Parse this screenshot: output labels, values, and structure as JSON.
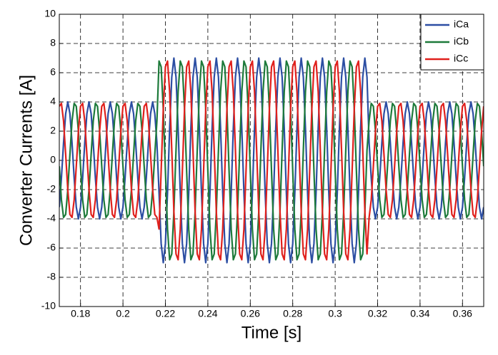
{
  "chart_data": {
    "type": "line",
    "xlabel": "Time [s]",
    "ylabel": "Converter Currents [A]",
    "xlim": [
      0.17,
      0.37
    ],
    "ylim": [
      -10,
      10
    ],
    "xticks": [
      0.18,
      0.2,
      0.22,
      0.24,
      0.26,
      0.28,
      0.3,
      0.32,
      0.34,
      0.36
    ],
    "yticks": [
      -10,
      -8,
      -6,
      -4,
      -2,
      0,
      2,
      4,
      6,
      8,
      10
    ],
    "grid": true,
    "legend": "upper right",
    "x": [
      0.17,
      0.171,
      0.172,
      0.173,
      0.174,
      0.175,
      0.176,
      0.177,
      0.178,
      0.179,
      0.18,
      0.181,
      0.182,
      0.183,
      0.184,
      0.185,
      0.186,
      0.187,
      0.188,
      0.189,
      0.19,
      0.191,
      0.192,
      0.193,
      0.194,
      0.195,
      0.196,
      0.197,
      0.198,
      0.199,
      0.2,
      0.201,
      0.202,
      0.203,
      0.204,
      0.205,
      0.206,
      0.207,
      0.208,
      0.209,
      0.21,
      0.211,
      0.212,
      0.213,
      0.214,
      0.215,
      0.216,
      0.217,
      0.218,
      0.219,
      0.22,
      0.221,
      0.222,
      0.223,
      0.224,
      0.225,
      0.226,
      0.227,
      0.228,
      0.229,
      0.23,
      0.231,
      0.232,
      0.233,
      0.234,
      0.235,
      0.236,
      0.237,
      0.238,
      0.239,
      0.24,
      0.241,
      0.242,
      0.243,
      0.244,
      0.245,
      0.246,
      0.247,
      0.248,
      0.249,
      0.25,
      0.251,
      0.252,
      0.253,
      0.254,
      0.255,
      0.256,
      0.257,
      0.258,
      0.259,
      0.26,
      0.261,
      0.262,
      0.263,
      0.264,
      0.265,
      0.266,
      0.267,
      0.268,
      0.269,
      0.27,
      0.271,
      0.272,
      0.273,
      0.274,
      0.275,
      0.276,
      0.277,
      0.278,
      0.279,
      0.28,
      0.281,
      0.282,
      0.283,
      0.284,
      0.285,
      0.286,
      0.287,
      0.288,
      0.289,
      0.29,
      0.291,
      0.292,
      0.293,
      0.294,
      0.295,
      0.296,
      0.297,
      0.298,
      0.299,
      0.3,
      0.301,
      0.302,
      0.303,
      0.304,
      0.305,
      0.306,
      0.307,
      0.308,
      0.309,
      0.31,
      0.311,
      0.312,
      0.313,
      0.314,
      0.315,
      0.316,
      0.317,
      0.318,
      0.319,
      0.32,
      0.321,
      0.322,
      0.323,
      0.324,
      0.325,
      0.326,
      0.327,
      0.328,
      0.329,
      0.33,
      0.331,
      0.332,
      0.333,
      0.334,
      0.335,
      0.336,
      0.337,
      0.338,
      0.339,
      0.34,
      0.341,
      0.342,
      0.343,
      0.344,
      0.345,
      0.346,
      0.347,
      0.348,
      0.349,
      0.35,
      0.351,
      0.352,
      0.353,
      0.354,
      0.355,
      0.356,
      0.357,
      0.358,
      0.359,
      0.36,
      0.361,
      0.362,
      0.363,
      0.364,
      0.365,
      0.366,
      0.367,
      0.368,
      0.369,
      0.37
    ],
    "series": [
      {
        "name": "iCa",
        "color": "#2c4ea3",
        "values": [
          -3.2,
          -1.2,
          1.2,
          3.2,
          4,
          3.2,
          1.2,
          -1.2,
          -3.2,
          -4,
          -3.2,
          -1.2,
          1.2,
          3.2,
          4,
          3.2,
          1.2,
          -1.2,
          -3.2,
          -4,
          -3.2,
          -1.2,
          1.2,
          3.2,
          4,
          3.2,
          1.2,
          -1.2,
          -3.2,
          -4,
          -3.2,
          -1.2,
          1.2,
          3.2,
          4,
          3.2,
          1.2,
          -1.2,
          -3.2,
          -4,
          -3.2,
          -1.2,
          1.2,
          3.2,
          4,
          3.2,
          1.2,
          -2.2,
          -5.7,
          -7,
          -5.7,
          -2.2,
          2.2,
          5.7,
          7,
          5.7,
          2.2,
          -2.2,
          -5.7,
          -7,
          -5.7,
          -2.2,
          2.2,
          5.7,
          7,
          5.7,
          2.2,
          -2.2,
          -5.7,
          -7,
          -5.7,
          -2.2,
          2.2,
          5.7,
          7,
          5.7,
          2.2,
          -2.2,
          -5.7,
          -7,
          -5.7,
          -2.2,
          2.2,
          5.7,
          7,
          5.7,
          2.2,
          -2.2,
          -5.7,
          -7,
          -5.7,
          -2.2,
          2.2,
          5.7,
          7,
          5.7,
          2.2,
          -2.2,
          -5.7,
          -7,
          -5.7,
          -2.2,
          2.2,
          5.7,
          7,
          5.7,
          2.2,
          -2.2,
          -5.7,
          -7,
          -5.7,
          -2.2,
          2.2,
          5.7,
          7,
          5.7,
          2.2,
          -2.2,
          -5.7,
          -7,
          -5.7,
          -2.2,
          2.2,
          5.7,
          7,
          5.7,
          2.2,
          -2.2,
          -5.7,
          -7,
          -5.7,
          -2.2,
          2.2,
          5.7,
          7,
          5.7,
          2.2,
          -2.2,
          -5.7,
          -7,
          -5.7,
          -2.2,
          2.2,
          5.7,
          7,
          5.7,
          1.2,
          -1.2,
          -3.2,
          -4,
          -3.2,
          -1.2,
          1.2,
          3.2,
          4,
          3.2,
          1.2,
          -1.2,
          -3.2,
          -4,
          -3.2,
          -1.2,
          1.2,
          3.2,
          4,
          3.2,
          1.2,
          -1.2,
          -3.2,
          -4,
          -3.2,
          -1.2,
          1.2,
          3.2,
          4,
          3.2,
          1.2,
          -1.2,
          -3.2,
          -4,
          -3.2,
          -1.2,
          1.2,
          3.2,
          4,
          3.2,
          1.2,
          -1.2,
          -3.2,
          -4,
          -3.2,
          -1.2,
          1.2,
          3.2,
          4,
          3.2,
          1.2,
          -1.2,
          -3.2,
          -4,
          -3.2
        ]
      },
      {
        "name": "iCb",
        "color": "#1d7a3a",
        "values": [
          -0.4,
          -2.7,
          -3.9,
          -3.7,
          -2,
          0.4,
          2.7,
          3.9,
          3.7,
          2,
          -0.4,
          -2.7,
          -3.9,
          -3.7,
          -2,
          0.4,
          2.7,
          3.9,
          3.7,
          2,
          -0.4,
          -2.7,
          -3.9,
          -3.7,
          -2,
          0.4,
          2.7,
          3.9,
          3.7,
          2,
          -0.4,
          -2.7,
          -3.9,
          -3.7,
          -2,
          0.4,
          2.7,
          3.9,
          3.7,
          2,
          -0.4,
          -2.7,
          -3.9,
          -3.7,
          -2,
          0.4,
          2.7,
          6.8,
          6.4,
          3.5,
          -0.7,
          -4.7,
          -6.8,
          -6.4,
          -3.5,
          0.7,
          4.7,
          6.8,
          6.4,
          3.5,
          -0.7,
          -4.7,
          -6.8,
          -6.4,
          -3.5,
          0.7,
          4.7,
          6.8,
          6.4,
          3.5,
          -0.7,
          -4.7,
          -6.8,
          -6.4,
          -3.5,
          0.7,
          4.7,
          6.8,
          6.4,
          3.5,
          -0.7,
          -4.7,
          -6.8,
          -6.4,
          -3.5,
          0.7,
          4.7,
          6.8,
          6.4,
          3.5,
          -0.7,
          -4.7,
          -6.8,
          -6.4,
          -3.5,
          0.7,
          4.7,
          6.8,
          6.4,
          3.5,
          -0.7,
          -4.7,
          -6.8,
          -6.4,
          -3.5,
          0.7,
          4.7,
          6.8,
          6.4,
          3.5,
          -0.7,
          -4.7,
          -6.8,
          -6.4,
          -3.5,
          0.7,
          4.7,
          6.8,
          6.4,
          3.5,
          -0.7,
          -4.7,
          -6.8,
          -6.4,
          -3.5,
          0.7,
          4.7,
          6.8,
          6.4,
          3.5,
          -0.7,
          -4.7,
          -6.8,
          -6.4,
          -3.5,
          0.7,
          4.7,
          6.8,
          6.4,
          3.5,
          -0.7,
          -4.7,
          -6.8,
          -6.4,
          -3.5,
          0.7,
          2.7,
          3.9,
          3.7,
          2,
          -0.4,
          -2.7,
          -3.9,
          -3.7,
          -2,
          0.4,
          2.7,
          3.9,
          3.7,
          2,
          -0.4,
          -2.7,
          -3.9,
          -3.7,
          -2,
          0.4,
          2.7,
          3.9,
          3.7,
          2,
          -0.4,
          -2.7,
          -3.9,
          -3.7,
          -2,
          0.4,
          2.7,
          3.9,
          3.7,
          2,
          -0.4,
          -2.7,
          -3.9,
          -3.7,
          -2,
          0.4,
          2.7,
          3.9,
          3.7,
          2,
          -0.4,
          -2.7,
          -3.9,
          -3.7,
          -2,
          0.4,
          2.7,
          3.9,
          3.7,
          2,
          -0.4
        ]
      },
      {
        "name": "iCc",
        "color": "#e0201c",
        "values": [
          3.7,
          3.9,
          2.7,
          0.4,
          -2,
          -3.7,
          -3.9,
          -2.7,
          -0.4,
          2,
          3.7,
          3.9,
          2.7,
          0.4,
          -2,
          -3.7,
          -3.9,
          -2.7,
          -0.4,
          2,
          3.7,
          3.9,
          2.7,
          0.4,
          -2,
          -3.7,
          -3.9,
          -2.7,
          -0.4,
          2,
          3.7,
          3.9,
          2.7,
          0.4,
          -2,
          -3.7,
          -3.9,
          -2.7,
          -0.4,
          2,
          3.7,
          3.9,
          2.7,
          0.4,
          -2,
          -3.7,
          -3.9,
          -4.7,
          -0.7,
          3.5,
          6.4,
          6.8,
          4.7,
          0.7,
          -3.5,
          -6.4,
          -6.8,
          -4.7,
          -0.7,
          3.5,
          6.4,
          6.8,
          4.7,
          0.7,
          -3.5,
          -6.4,
          -6.8,
          -4.7,
          -0.7,
          3.5,
          6.4,
          6.8,
          4.7,
          0.7,
          -3.5,
          -6.4,
          -6.8,
          -4.7,
          -0.7,
          3.5,
          6.4,
          6.8,
          4.7,
          0.7,
          -3.5,
          -6.4,
          -6.8,
          -4.7,
          -0.7,
          3.5,
          6.4,
          6.8,
          4.7,
          0.7,
          -3.5,
          -6.4,
          -6.8,
          -4.7,
          -0.7,
          3.5,
          6.4,
          6.8,
          4.7,
          0.7,
          -3.5,
          -6.4,
          -6.8,
          -4.7,
          -0.7,
          3.5,
          6.4,
          6.8,
          4.7,
          0.7,
          -3.5,
          -6.4,
          -6.8,
          -4.7,
          -0.7,
          3.5,
          6.4,
          6.8,
          4.7,
          0.7,
          -3.5,
          -6.4,
          -6.8,
          -4.7,
          -0.7,
          3.5,
          6.4,
          6.8,
          4.7,
          0.7,
          -3.5,
          -6.4,
          -6.8,
          -4.7,
          -0.7,
          3.5,
          6.4,
          6.8,
          4.7,
          0.7,
          -3.5,
          -6.4,
          -3.9,
          -2.7,
          -0.4,
          2,
          3.7,
          3.9,
          2.7,
          0.4,
          -2,
          -3.7,
          -3.9,
          -2.7,
          -0.4,
          2,
          3.7,
          3.9,
          2.7,
          0.4,
          -2,
          -3.7,
          -3.9,
          -2.7,
          -0.4,
          2,
          3.7,
          3.9,
          2.7,
          0.4,
          -2,
          -3.7,
          -3.9,
          -2.7,
          -0.4,
          2,
          3.7,
          3.9,
          2.7,
          0.4,
          -2,
          -3.7,
          -3.9,
          -2.7,
          -0.4,
          2,
          3.7,
          3.9,
          2.7,
          0.4,
          -2,
          -3.7,
          -3.9,
          -2.7,
          -0.4,
          2,
          3.7
        ]
      }
    ]
  }
}
